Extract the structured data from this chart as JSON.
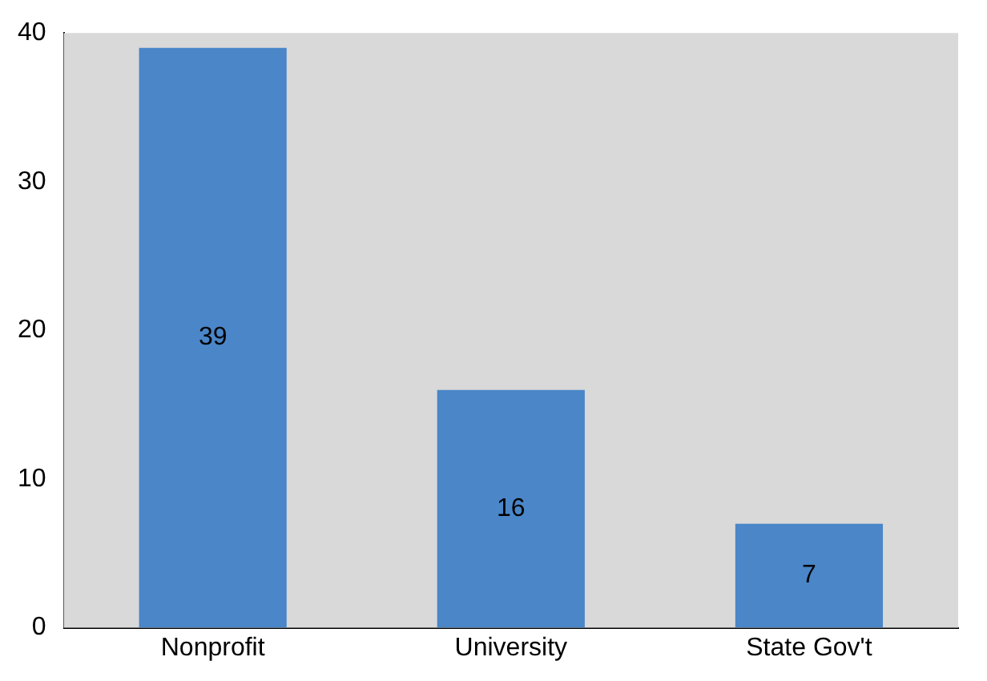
{
  "chart_data": {
    "type": "bar",
    "categories": [
      "Nonprofit",
      "University",
      "State Gov't"
    ],
    "values": [
      39,
      16,
      7
    ],
    "color": "#4a86c8",
    "ylim": [
      0,
      40
    ],
    "yticks": [
      0,
      10,
      20,
      30,
      40
    ],
    "grid": false,
    "legend": false,
    "data_labels": true
  }
}
